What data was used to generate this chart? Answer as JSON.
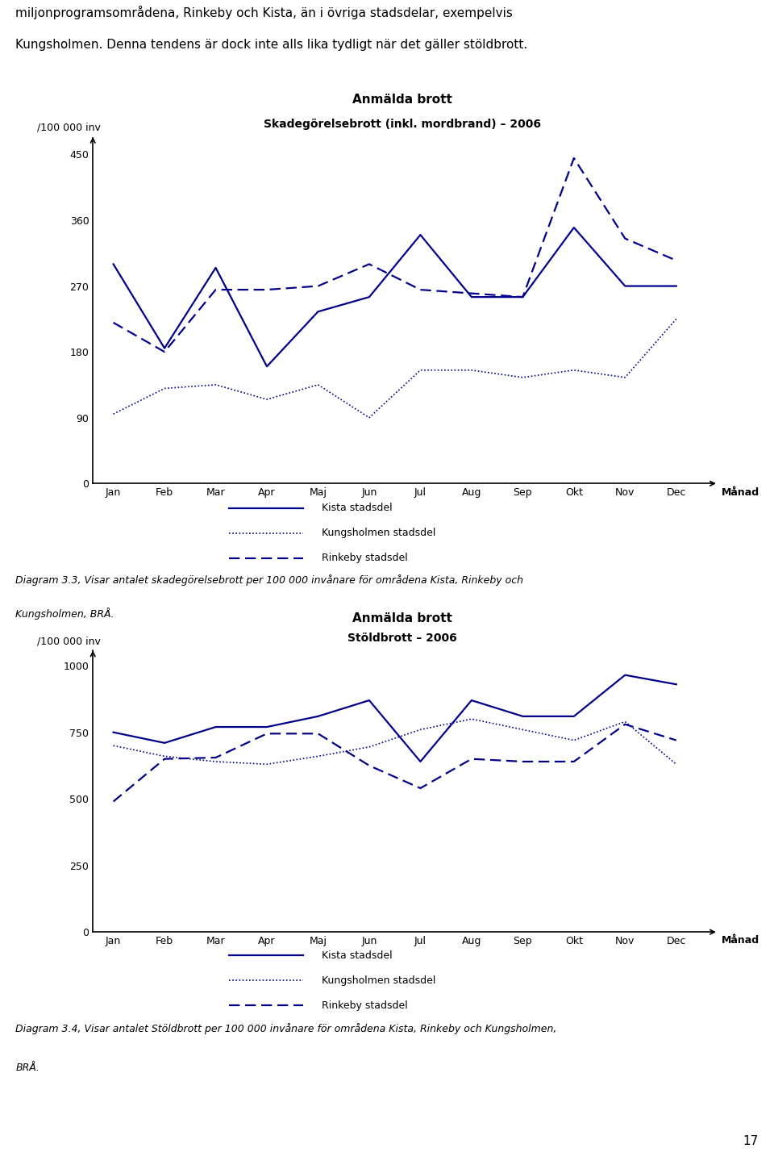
{
  "intro_text_line1": "miljonprogramsområdena, Rinkeby och Kista, än i övriga stadsdelar, exempelvis",
  "intro_text_line2": "Kungsholmen. Denna tendens är dock inte alls lika tydligt när det gäller stöldbrott.",
  "chart1": {
    "title_line1": "Anmälda brott",
    "title_line2": "Skadegörelsebrott (inkl. mordbrand) – 2006",
    "ylabel": "/100 000 inv",
    "xlabel": "Månad",
    "months": [
      "Jan",
      "Feb",
      "Mar",
      "Apr",
      "Maj",
      "Jun",
      "Jul",
      "Aug",
      "Sep",
      "Okt",
      "Nov",
      "Dec"
    ],
    "kista": [
      300,
      185,
      295,
      160,
      235,
      255,
      340,
      255,
      255,
      350,
      270,
      270
    ],
    "kungsholmen": [
      95,
      130,
      135,
      115,
      135,
      90,
      155,
      155,
      145,
      155,
      145,
      225
    ],
    "rinkeby": [
      220,
      180,
      265,
      265,
      270,
      300,
      265,
      260,
      255,
      445,
      335,
      305
    ],
    "ylim": [
      0,
      470
    ],
    "yticks": [
      0,
      90,
      180,
      270,
      360,
      450
    ]
  },
  "caption1_line1": "Diagram 3.3, Visar antalet skadegörelsebrott per 100 000 invånare för områdena Kista, Rinkeby och",
  "caption1_line2": "Kungsholmen, BRÅ.",
  "chart2": {
    "title_line1": "Anmälda brott",
    "title_line2": "Stöldbrott – 2006",
    "ylabel": "/100 000 inv",
    "xlabel": "Månad",
    "months": [
      "Jan",
      "Feb",
      "Mar",
      "Apr",
      "Maj",
      "Jun",
      "Jul",
      "Aug",
      "Sep",
      "Okt",
      "Nov",
      "Dec"
    ],
    "kista": [
      750,
      710,
      770,
      770,
      810,
      870,
      640,
      870,
      810,
      810,
      965,
      930
    ],
    "kungsholmen": [
      700,
      660,
      640,
      630,
      660,
      695,
      760,
      800,
      760,
      720,
      790,
      630
    ],
    "rinkeby": [
      490,
      650,
      655,
      745,
      745,
      625,
      540,
      650,
      640,
      640,
      780,
      720
    ],
    "ylim": [
      0,
      1050
    ],
    "yticks": [
      0,
      250,
      500,
      750,
      1000
    ]
  },
  "caption2_line1": "Diagram 3.4, Visar antalet Stöldbrott per 100 000 invånare för områdena Kista, Rinkeby och Kungsholmen,",
  "caption2_line2": "BRÅ.",
  "page_number": "17",
  "line_color": "#00008B",
  "legend_kista": "Kista stadsdel",
  "legend_kungsholmen": "Kungsholmen stadsdel",
  "legend_rinkeby": "Rinkeby stadsdel"
}
